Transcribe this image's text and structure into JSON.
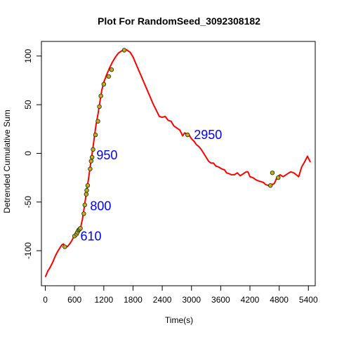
{
  "chart_data": {
    "type": "line",
    "title": "Plot For RandomSeed_3092308182",
    "xlabel": "Time(s)",
    "ylabel": "Detrended Cumulative Sum",
    "xlim": [
      -80,
      5540
    ],
    "ylim": [
      -136,
      115
    ],
    "xticks": [
      0,
      600,
      1200,
      1800,
      2400,
      3000,
      3600,
      4200,
      4800,
      5400
    ],
    "yticks": [
      -100,
      -50,
      0,
      50,
      100
    ],
    "line_color": "#ff0000",
    "marker_fill": "#d4a51c",
    "marker_edge": "#003300",
    "series": [
      {
        "values": [
          [
            0,
            -127
          ],
          [
            50,
            -121
          ],
          [
            100,
            -117
          ],
          [
            150,
            -112
          ],
          [
            200,
            -106
          ],
          [
            250,
            -101
          ],
          [
            300,
            -97
          ],
          [
            340,
            -94
          ],
          [
            370,
            -93
          ],
          [
            400,
            -95
          ],
          [
            450,
            -96
          ],
          [
            500,
            -93
          ],
          [
            540,
            -90
          ],
          [
            570,
            -87
          ],
          [
            600,
            -85
          ],
          [
            640,
            -83
          ],
          [
            680,
            -80
          ],
          [
            720,
            -77
          ],
          [
            760,
            -68
          ],
          [
            800,
            -55
          ],
          [
            830,
            -45
          ],
          [
            860,
            -35
          ],
          [
            890,
            -25
          ],
          [
            920,
            -14
          ],
          [
            950,
            -4
          ],
          [
            980,
            7
          ],
          [
            1010,
            18
          ],
          [
            1040,
            29
          ],
          [
            1080,
            40
          ],
          [
            1120,
            53
          ],
          [
            1160,
            65
          ],
          [
            1200,
            73
          ],
          [
            1260,
            81
          ],
          [
            1320,
            88
          ],
          [
            1380,
            94
          ],
          [
            1440,
            99
          ],
          [
            1500,
            103
          ],
          [
            1560,
            105
          ],
          [
            1620,
            107
          ],
          [
            1680,
            106
          ],
          [
            1740,
            104
          ],
          [
            1800,
            99
          ],
          [
            1860,
            92
          ],
          [
            1920,
            85
          ],
          [
            1980,
            78
          ],
          [
            2040,
            71
          ],
          [
            2100,
            64
          ],
          [
            2160,
            57
          ],
          [
            2220,
            50
          ],
          [
            2280,
            44
          ],
          [
            2340,
            38
          ],
          [
            2400,
            37
          ],
          [
            2460,
            38
          ],
          [
            2520,
            34
          ],
          [
            2580,
            33
          ],
          [
            2640,
            28
          ],
          [
            2700,
            26
          ],
          [
            2760,
            24
          ],
          [
            2820,
            18
          ],
          [
            2860,
            21
          ],
          [
            2900,
            20
          ],
          [
            2950,
            19
          ],
          [
            3000,
            15
          ],
          [
            3060,
            12
          ],
          [
            3100,
            9
          ],
          [
            3150,
            7
          ],
          [
            3200,
            4
          ],
          [
            3250,
            0
          ],
          [
            3300,
            -4
          ],
          [
            3350,
            -8
          ],
          [
            3400,
            -10
          ],
          [
            3450,
            -10
          ],
          [
            3500,
            -13
          ],
          [
            3560,
            -14
          ],
          [
            3620,
            -16
          ],
          [
            3680,
            -17
          ],
          [
            3720,
            -20
          ],
          [
            3780,
            -21
          ],
          [
            3820,
            -22
          ],
          [
            3880,
            -22
          ],
          [
            3940,
            -20
          ],
          [
            4000,
            -23
          ],
          [
            4060,
            -21
          ],
          [
            4120,
            -19
          ],
          [
            4160,
            -19
          ],
          [
            4200,
            -24
          ],
          [
            4260,
            -25
          ],
          [
            4320,
            -27
          ],
          [
            4360,
            -28
          ],
          [
            4420,
            -29
          ],
          [
            4480,
            -30
          ],
          [
            4520,
            -32
          ],
          [
            4580,
            -33
          ],
          [
            4620,
            -33
          ],
          [
            4660,
            -32
          ],
          [
            4700,
            -31
          ],
          [
            4760,
            -24
          ],
          [
            4820,
            -22
          ],
          [
            4880,
            -24
          ],
          [
            4940,
            -22
          ],
          [
            5000,
            -20
          ],
          [
            5040,
            -19
          ],
          [
            5100,
            -20
          ],
          [
            5150,
            -22
          ],
          [
            5200,
            -24
          ],
          [
            5260,
            -14
          ],
          [
            5320,
            -9
          ],
          [
            5380,
            -3
          ],
          [
            5440,
            -9
          ]
        ]
      }
    ],
    "markers": [
      [
        400,
        -96
      ],
      [
        600,
        -85
      ],
      [
        640,
        -83
      ],
      [
        660,
        -81
      ],
      [
        680,
        -79
      ],
      [
        700,
        -78
      ],
      [
        720,
        -77
      ],
      [
        790,
        -62
      ],
      [
        810,
        -53
      ],
      [
        840,
        -42
      ],
      [
        850,
        -38
      ],
      [
        870,
        -33
      ],
      [
        920,
        -16
      ],
      [
        940,
        -8
      ],
      [
        960,
        -4
      ],
      [
        980,
        4
      ],
      [
        1030,
        19
      ],
      [
        1080,
        33
      ],
      [
        1110,
        48
      ],
      [
        1140,
        59
      ],
      [
        1200,
        71
      ],
      [
        1300,
        79
      ],
      [
        1360,
        86
      ],
      [
        1620,
        106
      ],
      [
        2920,
        19
      ],
      [
        4620,
        -33
      ],
      [
        4660,
        -20
      ],
      [
        4780,
        -25
      ]
    ],
    "annotations": [
      {
        "label": "610",
        "x": 720,
        "y": -85
      },
      {
        "label": "800",
        "x": 920,
        "y": -54
      },
      {
        "label": "950",
        "x": 1050,
        "y": -2
      },
      {
        "label": "2950",
        "x": 3050,
        "y": 19
      }
    ]
  }
}
